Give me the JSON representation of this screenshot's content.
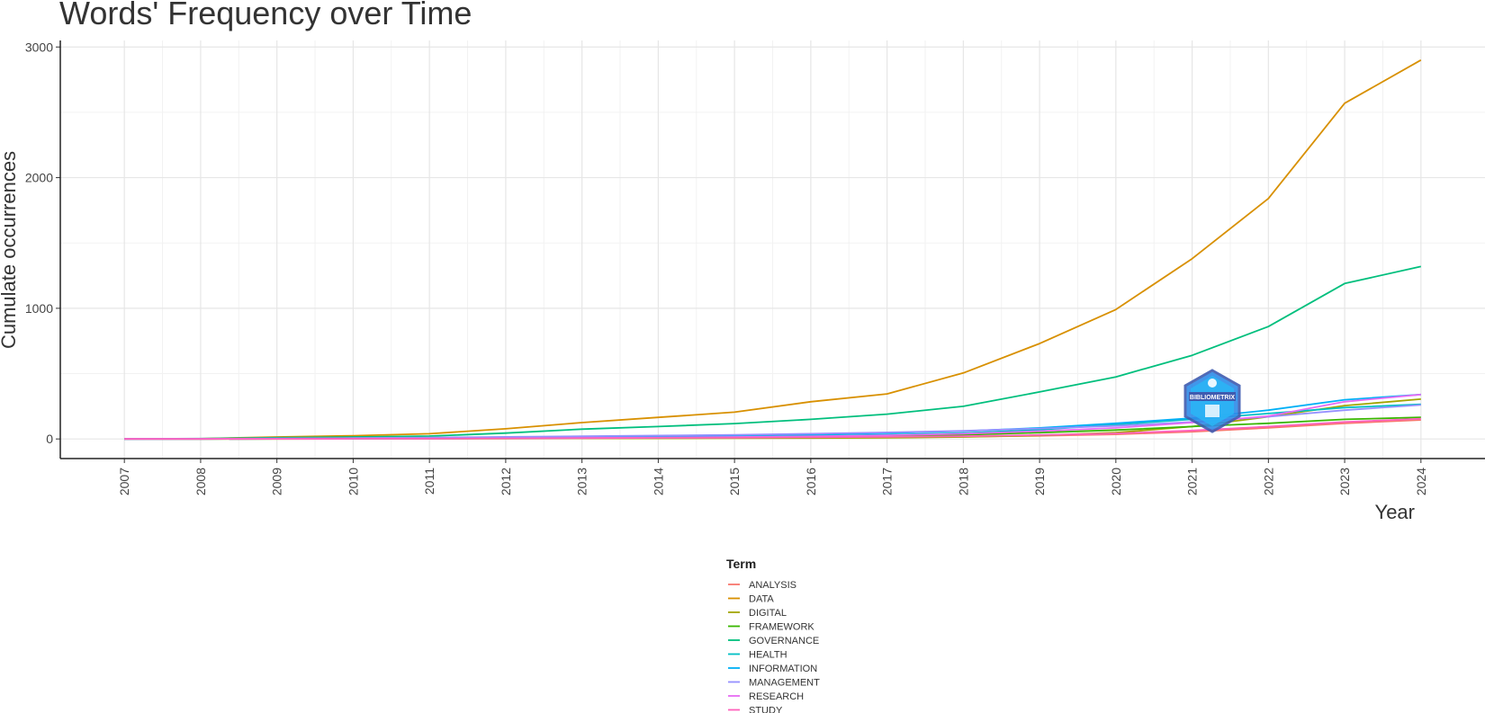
{
  "chart_data": {
    "type": "line",
    "title": "Words' Frequency over Time",
    "xlabel": "Year",
    "ylabel": "Cumulate occurrences",
    "x": [
      2007,
      2008,
      2009,
      2010,
      2011,
      2012,
      2013,
      2014,
      2015,
      2016,
      2017,
      2018,
      2019,
      2020,
      2021,
      2022,
      2023,
      2024
    ],
    "x_tick_labels": [
      "2007",
      "2008",
      "2009",
      "2010",
      "2011",
      "2012",
      "2013",
      "2014",
      "2015",
      "2016",
      "2017",
      "2018",
      "2019",
      "2020",
      "2021",
      "2022",
      "2023",
      "2024"
    ],
    "y_ticks": [
      0,
      1000,
      2000,
      3000
    ],
    "y_tick_labels": [
      "0",
      "1000",
      "2000",
      "3000"
    ],
    "xlim": [
      2006.16,
      2024.84
    ],
    "ylim": [
      -150,
      3050
    ],
    "grid": true,
    "legend_title": "Term",
    "legend_position": "bottom",
    "series": [
      {
        "name": "ANALYSIS",
        "color": "#F8766D",
        "values": [
          0,
          0,
          1,
          2,
          3,
          4,
          5,
          6,
          8,
          10,
          13,
          17,
          24,
          35,
          55,
          85,
          120,
          145
        ]
      },
      {
        "name": "DATA",
        "color": "#D89000",
        "values": [
          0,
          2,
          15,
          25,
          40,
          78,
          125,
          165,
          205,
          285,
          345,
          505,
          730,
          990,
          1380,
          1840,
          2570,
          2900
        ]
      },
      {
        "name": "DIGITAL",
        "color": "#A3A500",
        "values": [
          0,
          0,
          0,
          1,
          2,
          3,
          4,
          5,
          6,
          7,
          9,
          15,
          27,
          48,
          95,
          170,
          255,
          305
        ]
      },
      {
        "name": "FRAMEWORK",
        "color": "#39B600",
        "values": [
          0,
          0,
          1,
          2,
          3,
          5,
          7,
          9,
          12,
          16,
          22,
          32,
          48,
          68,
          95,
          120,
          150,
          165
        ]
      },
      {
        "name": "GOVERNANCE",
        "color": "#00BF7D",
        "values": [
          0,
          3,
          10,
          15,
          22,
          45,
          75,
          95,
          118,
          150,
          190,
          250,
          360,
          475,
          640,
          860,
          1190,
          1320
        ]
      },
      {
        "name": "HEALTH",
        "color": "#00BFC4",
        "values": [
          0,
          0,
          1,
          2,
          4,
          7,
          10,
          14,
          18,
          24,
          32,
          45,
          70,
          110,
          150,
          195,
          240,
          265
        ]
      },
      {
        "name": "INFORMATION",
        "color": "#00B0F6",
        "values": [
          0,
          1,
          3,
          5,
          8,
          12,
          17,
          22,
          28,
          35,
          45,
          60,
          85,
          120,
          160,
          220,
          300,
          340
        ]
      },
      {
        "name": "MANAGEMENT",
        "color": "#9590FF",
        "values": [
          0,
          1,
          4,
          7,
          11,
          16,
          21,
          26,
          32,
          40,
          50,
          62,
          80,
          100,
          130,
          170,
          220,
          260
        ]
      },
      {
        "name": "RESEARCH",
        "color": "#E76BF3",
        "values": [
          0,
          0,
          1,
          2,
          3,
          5,
          8,
          11,
          15,
          20,
          28,
          40,
          60,
          85,
          125,
          175,
          285,
          340
        ]
      },
      {
        "name": "STUDY",
        "color": "#FF62BC",
        "values": [
          0,
          0,
          1,
          2,
          3,
          4,
          6,
          8,
          10,
          13,
          16,
          21,
          30,
          42,
          65,
          95,
          130,
          155
        ]
      }
    ]
  }
}
